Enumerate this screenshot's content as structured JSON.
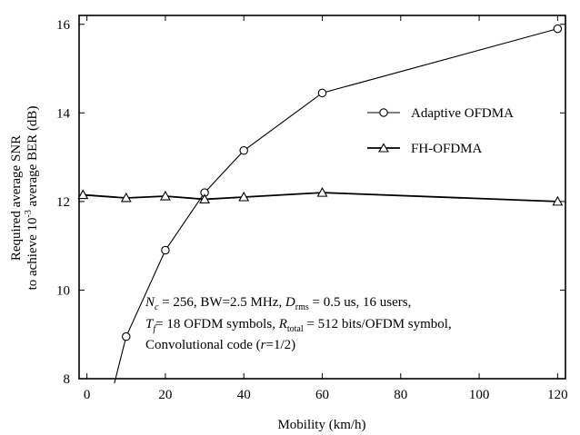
{
  "chart_data": {
    "type": "line",
    "xlabel": "Mobility (km/h)",
    "ylabel_line1": "Required average SNR",
    "ylabel_line2_pre": "to achieve 10",
    "ylabel_line2_sup": "-3",
    "ylabel_line2_post": " average BER (dB)",
    "xlim": [
      -2,
      122
    ],
    "ylim": [
      8,
      16.2
    ],
    "xticks": [
      0,
      20,
      40,
      60,
      80,
      100,
      120
    ],
    "yticks": [
      8,
      10,
      12,
      14,
      16
    ],
    "grid": false,
    "legend_position": "right",
    "series": [
      {
        "name": "Adaptive OFDMA",
        "marker": "circle",
        "x": [
          7,
          10,
          20,
          30,
          40,
          60,
          120
        ],
        "y": [
          7.9,
          8.95,
          10.9,
          12.2,
          13.15,
          14.45,
          15.9
        ]
      },
      {
        "name": "FH-OFDMA",
        "marker": "triangle",
        "x": [
          -1,
          10,
          20,
          30,
          40,
          60,
          120
        ],
        "y": [
          12.15,
          12.08,
          12.12,
          12.05,
          12.1,
          12.2,
          12.0
        ]
      }
    ],
    "annotation": {
      "line1": [
        {
          "t": "N",
          "style": "italic"
        },
        {
          "t": "c",
          "style": "sub-italic"
        },
        {
          "t": " = 256, BW=2.5 MHz, "
        },
        {
          "t": "D",
          "style": "italic"
        },
        {
          "t": "rms",
          "style": "sub"
        },
        {
          "t": " = 0.5 us, 16 users,"
        }
      ],
      "line2": [
        {
          "t": "T",
          "style": "italic"
        },
        {
          "t": "f",
          "style": "sub-italic"
        },
        {
          "t": "= 18 OFDM symbols, "
        },
        {
          "t": "R",
          "style": "italic"
        },
        {
          "t": "total",
          "style": "sub"
        },
        {
          "t": " = 512 bits/OFDM symbol,"
        }
      ],
      "line3": [
        {
          "t": "Convolutional code ("
        },
        {
          "t": "r",
          "style": "italic"
        },
        {
          "t": "=1/2)"
        }
      ]
    }
  }
}
